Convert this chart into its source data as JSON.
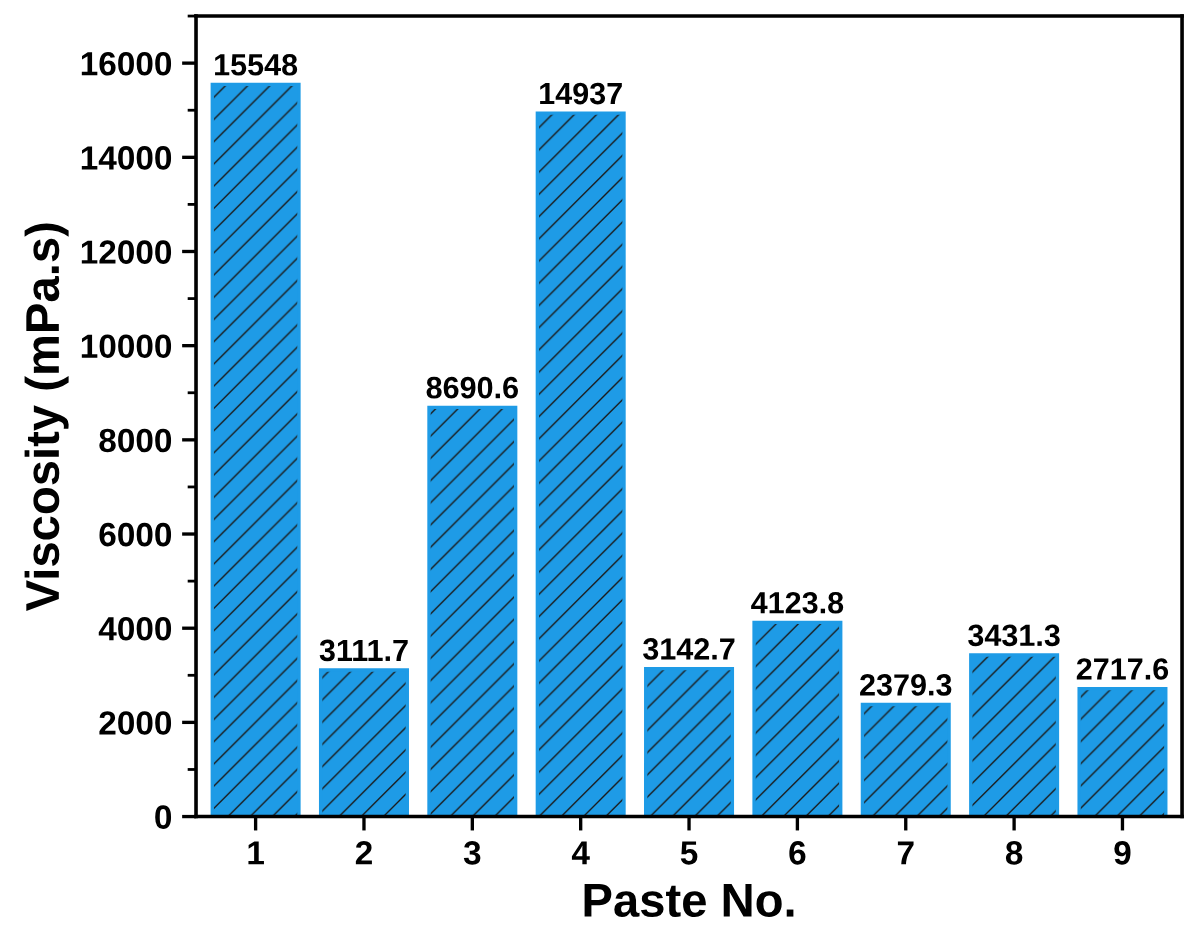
{
  "chart_data": {
    "type": "bar",
    "xlabel": "Paste No.",
    "ylabel": "Viscosity (mPa.s)",
    "categories": [
      "1",
      "2",
      "3",
      "4",
      "5",
      "6",
      "7",
      "8",
      "9"
    ],
    "values": [
      15548,
      3111.7,
      8690.6,
      14937,
      3142.7,
      4123.8,
      2379.3,
      3431.3,
      2717.6
    ],
    "color": "#1e9be6",
    "ylim": [
      0,
      17000
    ],
    "yticks": [
      0,
      2000,
      4000,
      6000,
      8000,
      10000,
      12000,
      14000,
      16000
    ],
    "data_labels": true,
    "grid": false,
    "legend": false
  }
}
